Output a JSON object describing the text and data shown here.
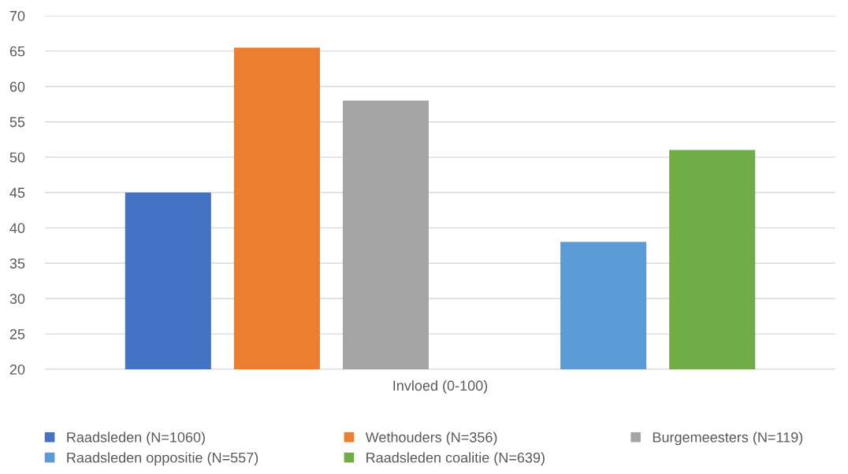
{
  "chart_data": {
    "type": "bar",
    "categories": [
      "Invloed (0-100)"
    ],
    "series": [
      {
        "name": "Raadsleden (N=1060)",
        "color": "#4472c4",
        "values": [
          45
        ]
      },
      {
        "name": "Wethouders (N=356)",
        "color": "#ed7d31",
        "values": [
          65.5
        ]
      },
      {
        "name": "Burgemeesters (N=119)",
        "color": "#a5a5a5",
        "values": [
          58
        ]
      },
      {
        "color": "#ffc000",
        "values": [
          null
        ]
      },
      {
        "name": "Raadsleden oppositie (N=557)",
        "color": "#5b9bd5",
        "values": [
          38
        ]
      },
      {
        "name": "Raadsleden coalitie (N=639)",
        "color": "#70ad47",
        "values": [
          51
        ]
      }
    ],
    "ylim": [
      20,
      70
    ],
    "yticks": [
      20,
      25,
      30,
      35,
      40,
      45,
      50,
      55,
      60,
      65,
      70
    ],
    "grid": "y",
    "legend": "bottom"
  }
}
